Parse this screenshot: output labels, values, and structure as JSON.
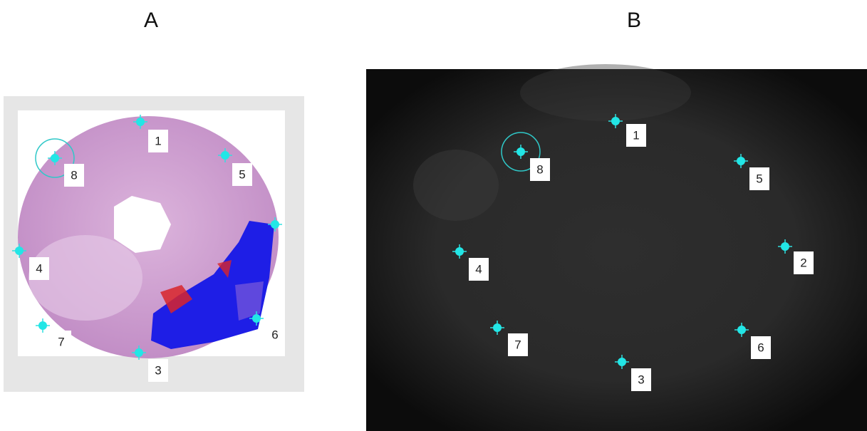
{
  "panels": [
    {
      "title": "A",
      "landmarks": [
        "1",
        "8",
        "5",
        "4",
        "7",
        "3",
        "6"
      ]
    },
    {
      "title": "B",
      "landmarks": [
        "1",
        "8",
        "5",
        "4",
        "2",
        "7",
        "6",
        "3"
      ]
    }
  ]
}
